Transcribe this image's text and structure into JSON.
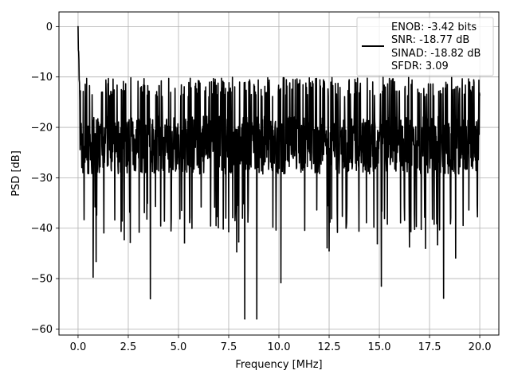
{
  "chart_data": {
    "type": "line",
    "title": "",
    "xlabel": "Frequency [MHz]",
    "ylabel": "PSD [dB]",
    "xlim": [
      -0.95,
      20.95
    ],
    "ylim": [
      -61.2,
      2.9
    ],
    "x_ticks": [
      0.0,
      2.5,
      5.0,
      7.5,
      10.0,
      12.5,
      15.0,
      17.5,
      20.0
    ],
    "x_tick_labels": [
      "0.0",
      "2.5",
      "5.0",
      "7.5",
      "10.0",
      "12.5",
      "15.0",
      "17.5",
      "20.0"
    ],
    "y_ticks": [
      0,
      -10,
      -20,
      -30,
      -40,
      -50,
      -60
    ],
    "y_tick_labels": [
      "0",
      "−10",
      "−20",
      "−30",
      "−40",
      "−50",
      "−60"
    ],
    "grid": true,
    "legend_position": "top-right",
    "legend_lines": [
      "ENOB: -3.42 bits",
      "SNR: -18.77 dB",
      "SINAD: -18.82 dB",
      "SFDR: 3.09"
    ],
    "series": [
      {
        "color": "#000000",
        "x_range": [
          0,
          20
        ],
        "noise_floor_band": [
          -35,
          -12
        ],
        "peak": {
          "x": 0.0,
          "y": 0.0
        },
        "notable_dips": [
          {
            "x": 0.75,
            "y": -49.7
          },
          {
            "x": 0.9,
            "y": -46.6
          },
          {
            "x": 2.3,
            "y": -42.3
          },
          {
            "x": 2.6,
            "y": -42.8
          },
          {
            "x": 3.6,
            "y": -54.0
          },
          {
            "x": 5.3,
            "y": -42.9
          },
          {
            "x": 7.5,
            "y": -40.7
          },
          {
            "x": 7.9,
            "y": -44.7
          },
          {
            "x": 8.0,
            "y": -42.7
          },
          {
            "x": 8.3,
            "y": -58.0
          },
          {
            "x": 8.9,
            "y": -58.0
          },
          {
            "x": 10.1,
            "y": -50.8
          },
          {
            "x": 12.4,
            "y": -43.9
          },
          {
            "x": 12.5,
            "y": -44.5
          },
          {
            "x": 14.9,
            "y": -43.1
          },
          {
            "x": 15.1,
            "y": -51.5
          },
          {
            "x": 16.5,
            "y": -43.7
          },
          {
            "x": 17.3,
            "y": -44.0
          },
          {
            "x": 17.9,
            "y": -43.3
          },
          {
            "x": 18.2,
            "y": -53.9
          },
          {
            "x": 18.8,
            "y": -45.9
          }
        ]
      }
    ]
  }
}
